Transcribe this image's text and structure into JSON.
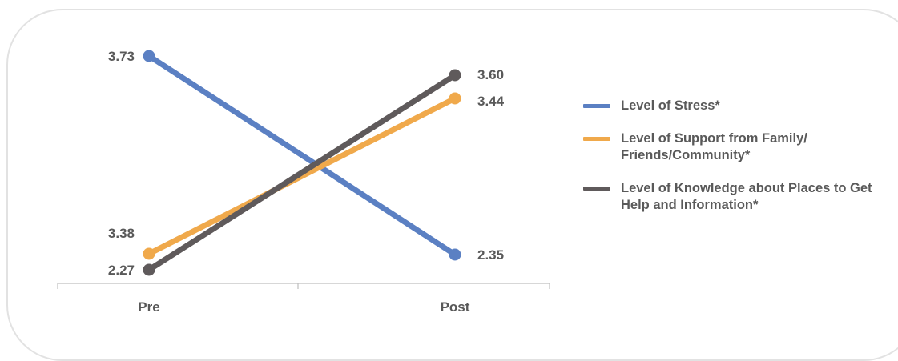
{
  "chart_data": {
    "type": "line",
    "categories": [
      "Pre",
      "Post"
    ],
    "series": [
      {
        "name": "Level of Stress*",
        "values": [
          3.73,
          2.35
        ],
        "color": "#5b80c3"
      },
      {
        "name": "Level of Support from Family/ Friends/Community*",
        "values": [
          3.38,
          3.44
        ],
        "color": "#f0a94b"
      },
      {
        "name": "Level of Knowledge about Places to Get Help and Information*",
        "values": [
          2.27,
          3.6
        ],
        "color": "#5f5a5b"
      }
    ],
    "data_labels": [
      {
        "series": 0,
        "point": 0,
        "text": "3.73"
      },
      {
        "series": 0,
        "point": 1,
        "text": "2.35"
      },
      {
        "series": 1,
        "point": 0,
        "text": "3.38"
      },
      {
        "series": 1,
        "point": 1,
        "text": "3.44"
      },
      {
        "series": 2,
        "point": 0,
        "text": "2.27"
      },
      {
        "series": 2,
        "point": 1,
        "text": "3.60"
      }
    ],
    "legend_position": "right",
    "gridlines": false,
    "title": "",
    "xlabel": "",
    "ylabel": ""
  }
}
